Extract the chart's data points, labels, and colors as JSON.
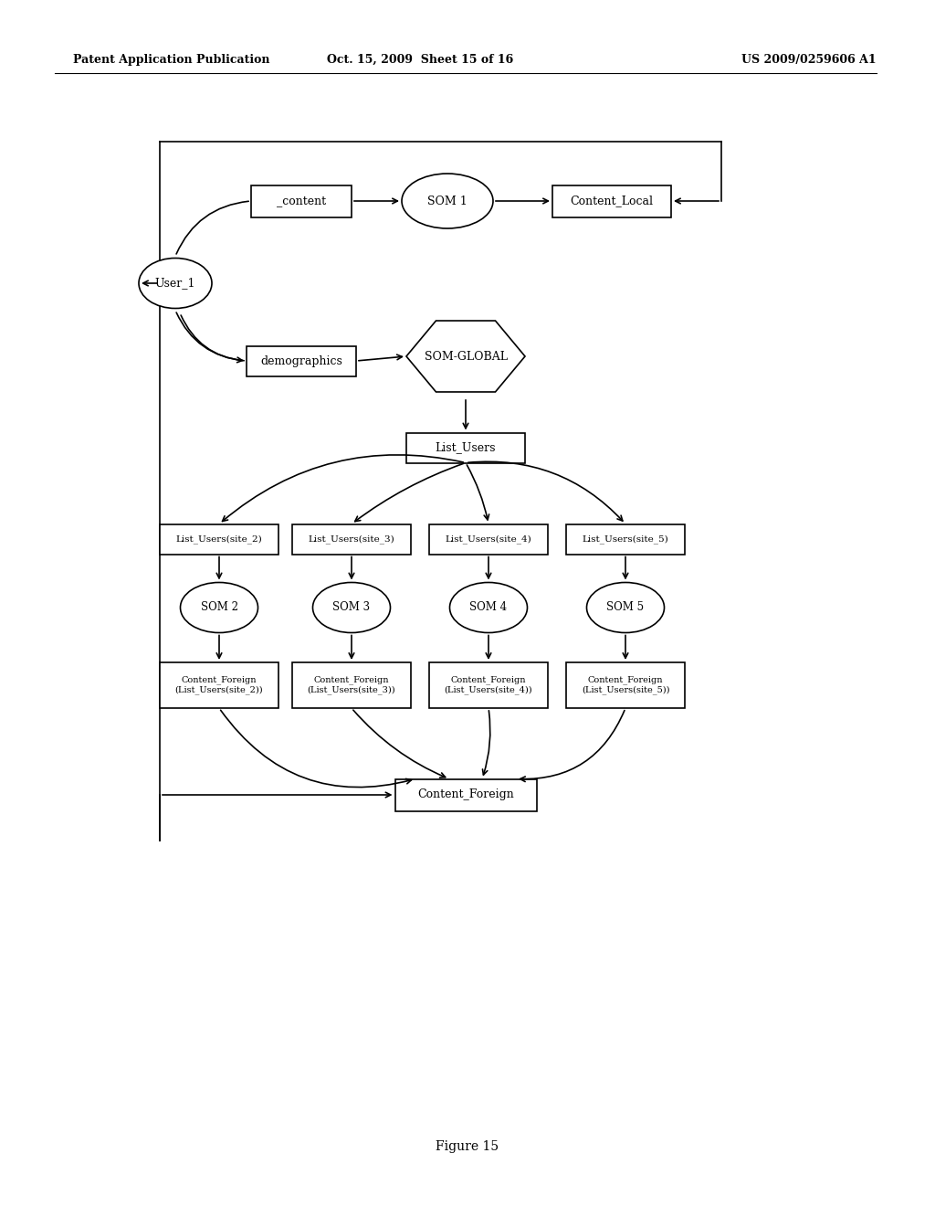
{
  "header_left": "Patent Application Publication",
  "header_mid": "Oct. 15, 2009  Sheet 15 of 16",
  "header_right": "US 2009/0259606 A1",
  "footer": "Figure 15",
  "bg_color": "#ffffff",
  "line_color": "#000000",
  "fig_w": 10.24,
  "fig_h": 13.2,
  "dpi": 100
}
